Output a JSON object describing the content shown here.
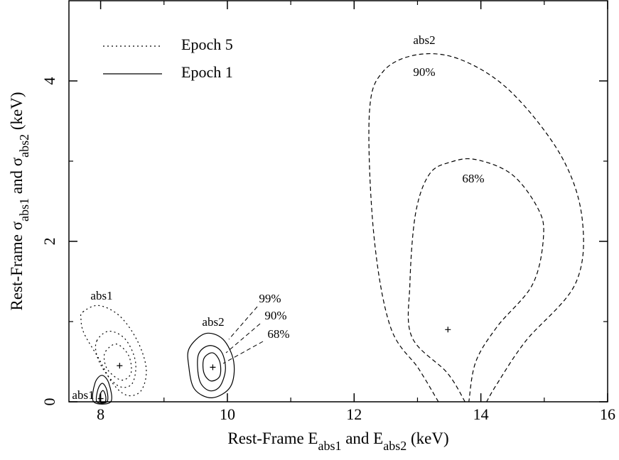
{
  "chart_data": {
    "type": "contour",
    "xlabel": [
      "Rest-Frame E",
      "abs1",
      " and E",
      "abs2",
      " (keV)"
    ],
    "ylabel": [
      "Rest-Frame σ",
      "abs1",
      " and σ",
      "abs2",
      " (keV)"
    ],
    "xlim": [
      7.5,
      16
    ],
    "ylim": [
      0,
      5
    ],
    "xticks": [
      8,
      10,
      12,
      14,
      16
    ],
    "yticks": [
      0,
      2,
      4
    ],
    "xminorticks": [
      9,
      11,
      13,
      15
    ],
    "yminorticks": [
      1,
      3
    ],
    "annotations": [
      "abs1",
      "abs1",
      "abs2",
      "abs2",
      "99%",
      "90%",
      "68%",
      "90%",
      "68%"
    ],
    "series": [
      {
        "name": "Epoch 5",
        "color": "#000",
        "dash": "dotted",
        "contours": [
          {
            "x": [
              7.72,
              7.97,
              8.3,
              8.58,
              8.72,
              8.64,
              8.42,
              8.19,
              7.97,
              7.74,
              7.69
            ],
            "y": [
              1.12,
              1.2,
              1.07,
              0.76,
              0.41,
              0.14,
              0.08,
              0.23,
              0.54,
              0.85,
              1.03
            ],
            "closed": true
          },
          {
            "x": [
              7.94,
              8.13,
              8.39,
              8.55,
              8.5,
              8.3,
              8.08,
              7.94
            ],
            "y": [
              0.76,
              0.88,
              0.78,
              0.5,
              0.23,
              0.19,
              0.36,
              0.58
            ],
            "closed": true
          },
          {
            "x": [
              8.08,
              8.25,
              8.44,
              8.48,
              8.33,
              8.13,
              8.06
            ],
            "y": [
              0.63,
              0.72,
              0.58,
              0.36,
              0.27,
              0.38,
              0.51
            ],
            "closed": true
          },
          {
            "x": [
              13.33,
              13.02,
              12.57,
              12.31,
              12.24,
              12.46,
              13.02,
              13.7,
              14.48,
              15.27,
              15.6,
              15.49,
              14.71,
              14.26,
              14.09
            ],
            "y": [
              0,
              0.41,
              0.94,
              2.09,
              3.59,
              4.12,
              4.33,
              4.26,
              3.86,
              3.06,
              2.27,
              1.47,
              0.76,
              0.23,
              0
            ],
            "closed": false,
            "dash": "dashed"
          },
          {
            "x": [
              13.75,
              13.47,
              12.91,
              12.88,
              12.97,
              13.19,
              13.53,
              13.92,
              14.48,
              14.88,
              14.99,
              14.82,
              14.26,
              13.92,
              13.81
            ],
            "y": [
              0,
              0.36,
              0.81,
              1.47,
              2.35,
              2.84,
              2.99,
              3.02,
              2.84,
              2.44,
              2.09,
              1.47,
              0.94,
              0.5,
              0
            ],
            "closed": false,
            "dash": "dashed"
          }
        ],
        "best_fit": {
          "x": [
            8.3,
            13.48
          ],
          "y": [
            0.45,
            0.9
          ]
        }
      },
      {
        "name": "Epoch 1",
        "color": "#000",
        "dash": "solid",
        "contours": [
          {
            "x": [
              7.91,
              8.02,
              8.13,
              8.16,
              7.89
            ],
            "y": [
              0.23,
              0.33,
              0.23,
              0,
              0
            ],
            "closed": true
          },
          {
            "x": [
              7.96,
              8.03,
              8.1,
              8.1,
              7.94
            ],
            "y": [
              0.16,
              0.23,
              0.14,
              0,
              0
            ],
            "closed": true
          },
          {
            "x": [
              7.99,
              8.04,
              8.08,
              8.07,
              7.99
            ],
            "y": [
              0.09,
              0.14,
              0.07,
              0,
              0
            ],
            "closed": true
          },
          {
            "x": [
              9.4,
              9.65,
              9.93,
              10.1,
              10.05,
              9.76,
              9.48,
              9.39
            ],
            "y": [
              0.67,
              0.85,
              0.78,
              0.5,
              0.19,
              0.05,
              0.16,
              0.45
            ],
            "closed": true
          },
          {
            "x": [
              9.54,
              9.71,
              9.9,
              9.97,
              9.88,
              9.71,
              9.56
            ],
            "y": [
              0.58,
              0.7,
              0.63,
              0.41,
              0.19,
              0.14,
              0.27
            ],
            "closed": true
          },
          {
            "x": [
              9.63,
              9.77,
              9.88,
              9.88,
              9.74,
              9.63
            ],
            "y": [
              0.54,
              0.61,
              0.5,
              0.32,
              0.26,
              0.36
            ],
            "closed": true
          }
        ],
        "best_fit": {
          "x": [
            8.0,
            9.77
          ],
          "y": [
            0.04,
            0.43
          ]
        }
      }
    ]
  }
}
